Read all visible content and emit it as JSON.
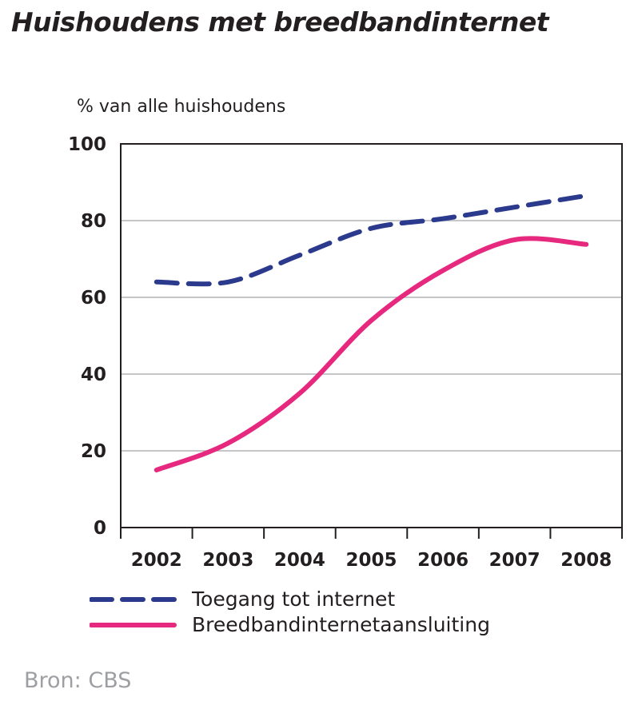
{
  "title": "Huishoudens met breedbandinternet",
  "source": "Bron: CBS",
  "colors": {
    "series_1": "#2b3a8c",
    "series_2": "#e6287e",
    "grid": "#b1b3b6",
    "axis": "#231f20"
  },
  "chart_data": {
    "type": "line",
    "title": "Huishoudens met breedbandinternet",
    "xlabel": "",
    "ylabel": "% van alle huishoudens",
    "categories": [
      "2002",
      "2003",
      "2004",
      "2005",
      "2006",
      "2007",
      "2008"
    ],
    "ylim": [
      0,
      100
    ],
    "yticks": [
      "0",
      "20",
      "40",
      "60",
      "80",
      "100"
    ],
    "grid": true,
    "legend_position": "bottom",
    "series": [
      {
        "name": "Toegang tot internet",
        "style": "dashed",
        "color": "#2b3a8c",
        "values": [
          64,
          64,
          71,
          78,
          80.5,
          83.5,
          86.5
        ]
      },
      {
        "name": "Breedbandinternetaansluiting",
        "style": "solid",
        "color": "#e6287e",
        "values": [
          15,
          22,
          35,
          54,
          67,
          75,
          73.8
        ]
      }
    ]
  }
}
